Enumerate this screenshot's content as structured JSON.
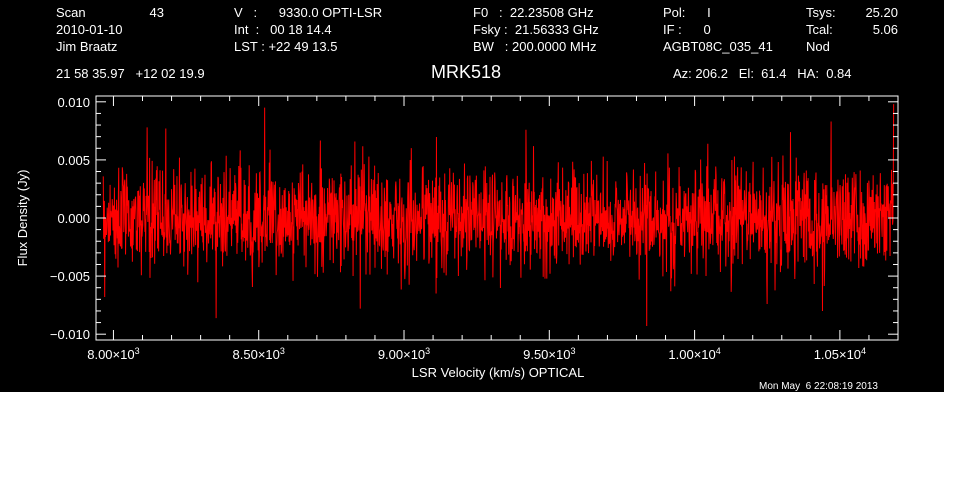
{
  "header": {
    "scan_label": "Scan",
    "scan_value": "43",
    "date": "2010-01-10",
    "observer": "Jim Braatz",
    "velocity": "V   :      9330.0 OPTI-LSR",
    "integration": "Int  :   00 18 14.4",
    "lst": "LST : +22 49 13.5",
    "f0": "F0   :  22.23508 GHz",
    "fsky": "Fsky :  21.56333 GHz",
    "bw": "BW   : 200.0000 MHz",
    "pol": "Pol:      I",
    "if": "IF :      0",
    "project": "AGBT08C_035_41",
    "tsys_label": "Tsys:",
    "tsys_value": "25.20",
    "tcal_label": "Tcal:",
    "tcal_value": "5.06",
    "procedure": "Nod",
    "coords": "21 58 35.97   +12 02 19.9",
    "source": "MRK518",
    "azelha": "Az: 206.2   El:  61.4   HA:  0.84"
  },
  "footer": {
    "timestamp": "Mon May  6 22:08:19 2013"
  },
  "colors": {
    "background": "#000000",
    "axes": "#ffffff",
    "series": "#ff0000"
  },
  "chart_data": {
    "type": "line",
    "xlabel": "LSR Velocity (km/s) OPTICAL",
    "ylabel": "Flux Density (Jy)",
    "xlim": [
      7940,
      10700
    ],
    "ylim": [
      -0.0105,
      0.0105
    ],
    "x_ticks": [
      {
        "value": 8000,
        "label": "8.00×10",
        "exp": "3"
      },
      {
        "value": 8500,
        "label": "8.50×10",
        "exp": "3"
      },
      {
        "value": 9000,
        "label": "9.00×10",
        "exp": "3"
      },
      {
        "value": 9500,
        "label": "9.50×10",
        "exp": "3"
      },
      {
        "value": 10000,
        "label": "1.00×10",
        "exp": "4"
      },
      {
        "value": 10500,
        "label": "1.05×10",
        "exp": "4"
      }
    ],
    "y_ticks": [
      {
        "value": 0.01,
        "label": "0.010"
      },
      {
        "value": 0.005,
        "label": "0.005"
      },
      {
        "value": 0.0,
        "label": "0.000"
      },
      {
        "value": -0.005,
        "label": "−0.005"
      },
      {
        "value": -0.01,
        "label": "−0.010"
      }
    ],
    "series": [
      {
        "color": "#ff0000",
        "x_range": [
          7965,
          10685
        ],
        "n_points": 2200,
        "mean": 0.0,
        "rms": 0.0022,
        "peaks": [
          {
            "x": 10685,
            "y": 0.0098
          },
          {
            "x": 8520,
            "y": 0.0095
          },
          {
            "x": 8180,
            "y": 0.0077
          },
          {
            "x": 10470,
            "y": 0.0083
          },
          {
            "x": 9420,
            "y": 0.0076
          },
          {
            "x": 9835,
            "y": -0.0093
          },
          {
            "x": 8850,
            "y": -0.0078
          },
          {
            "x": 10440,
            "y": -0.008
          },
          {
            "x": 7970,
            "y": -0.0068
          },
          {
            "x": 10250,
            "y": -0.0074
          }
        ]
      }
    ]
  }
}
